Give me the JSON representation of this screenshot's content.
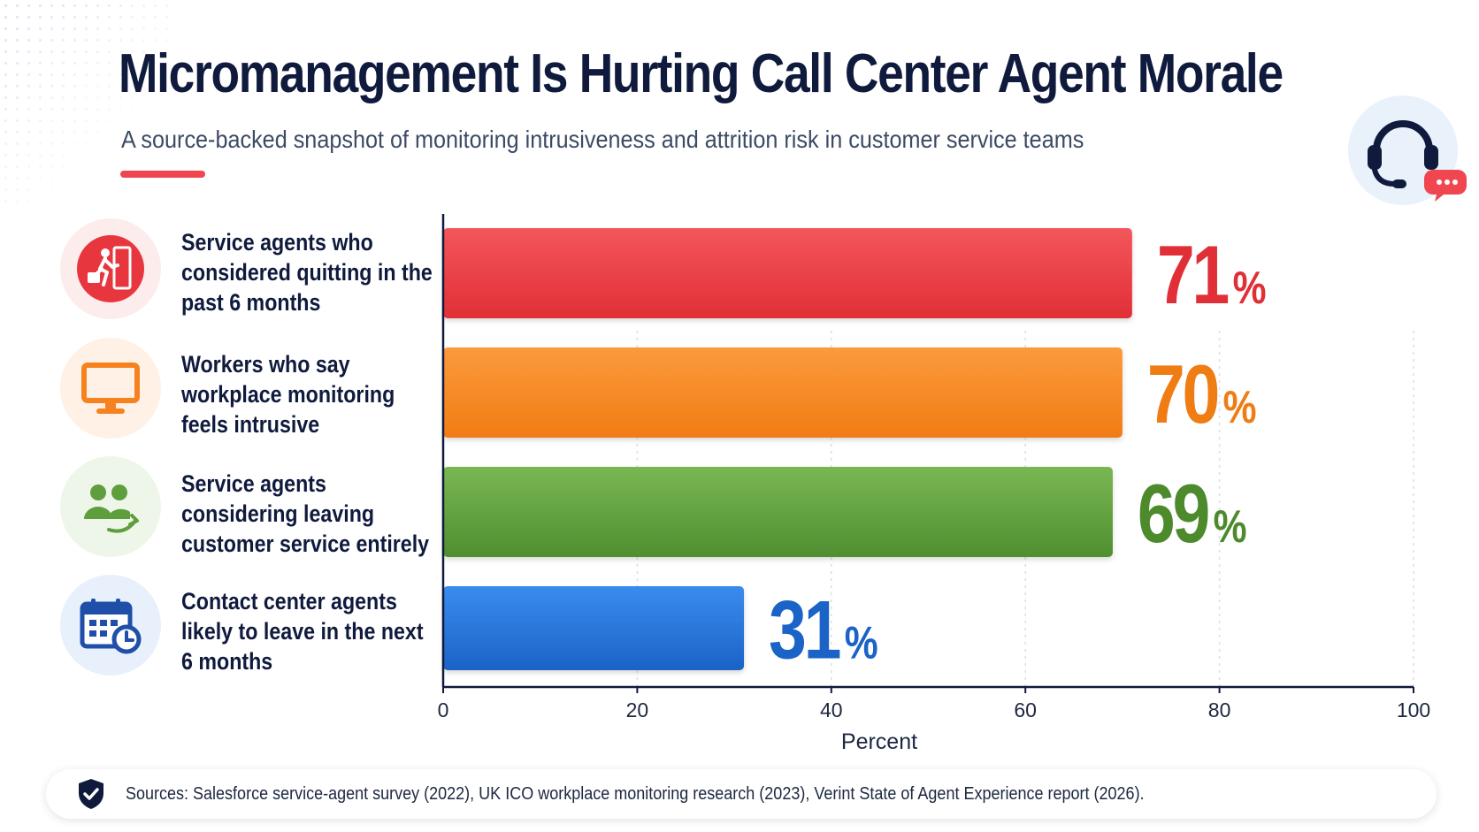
{
  "title": "Micromanagement Is Hurting Call Center Agent Morale",
  "subtitle": "A source-backed snapshot of monitoring intrusiveness and attrition risk in customer service teams",
  "sources": "Sources: Salesforce service-agent survey (2022), UK ICO workplace monitoring research (2023), Verint State of Agent Experience report (2026).",
  "icons": {
    "hero": "headset-chat-icon",
    "rows": [
      "person-exit-icon",
      "monitor-icon",
      "people-leaving-icon",
      "calendar-clock-icon"
    ],
    "sources": "shield-check-icon"
  },
  "colors": {
    "title": "#0f1a3d",
    "accent": "#ef4650",
    "red": "#e8363e",
    "orange": "#f5821f",
    "green": "#5e9e3c",
    "blue": "#1f6fd6"
  },
  "chart_data": {
    "type": "bar",
    "orientation": "horizontal",
    "categories": [
      "Service agents who considered quitting in the past 6 months",
      "Workers who say workplace monitoring feels intrusive",
      "Service agents considering leaving customer service entirely",
      "Contact center agents likely to leave in the next 6 months"
    ],
    "values": [
      71,
      70,
      69,
      31
    ],
    "value_labels": [
      "71",
      "70",
      "69",
      "31"
    ],
    "value_suffix": "%",
    "bar_colors": [
      "#e8363e",
      "#f5821f",
      "#5e9e3c",
      "#1f6fd6"
    ],
    "label_colors": [
      "#e02f36",
      "#f07c14",
      "#4c8a2c",
      "#1b63c6"
    ],
    "xlabel": "Percent",
    "ylabel": "",
    "xlim": [
      0,
      100
    ],
    "xticks": [
      0,
      20,
      40,
      60,
      80,
      100
    ],
    "grid": true
  }
}
